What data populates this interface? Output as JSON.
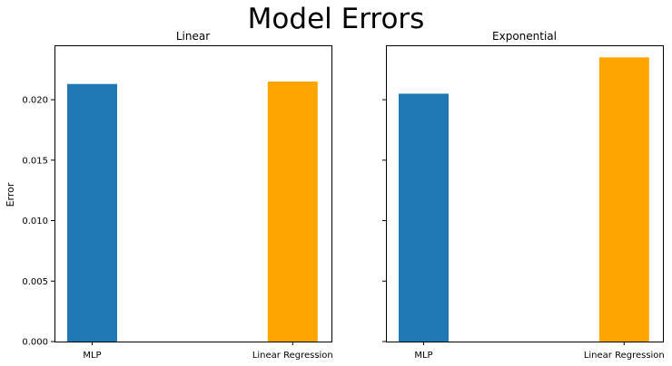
{
  "chart_data": {
    "title": "Model Errors",
    "ylabel": "Error",
    "ylim": [
      0,
      0.0245
    ],
    "yticks": [
      "0.000",
      "0.005",
      "0.010",
      "0.015",
      "0.020"
    ],
    "sharey": true,
    "type": "bar",
    "categories": [
      "MLP",
      "Linear Regression"
    ],
    "colors": [
      "#1f77b4",
      "#ffa500"
    ],
    "subplots": [
      {
        "title": "Linear",
        "values": [
          0.0213,
          0.0215
        ]
      },
      {
        "title": "Exponential",
        "values": [
          0.0205,
          0.0235
        ]
      }
    ]
  }
}
